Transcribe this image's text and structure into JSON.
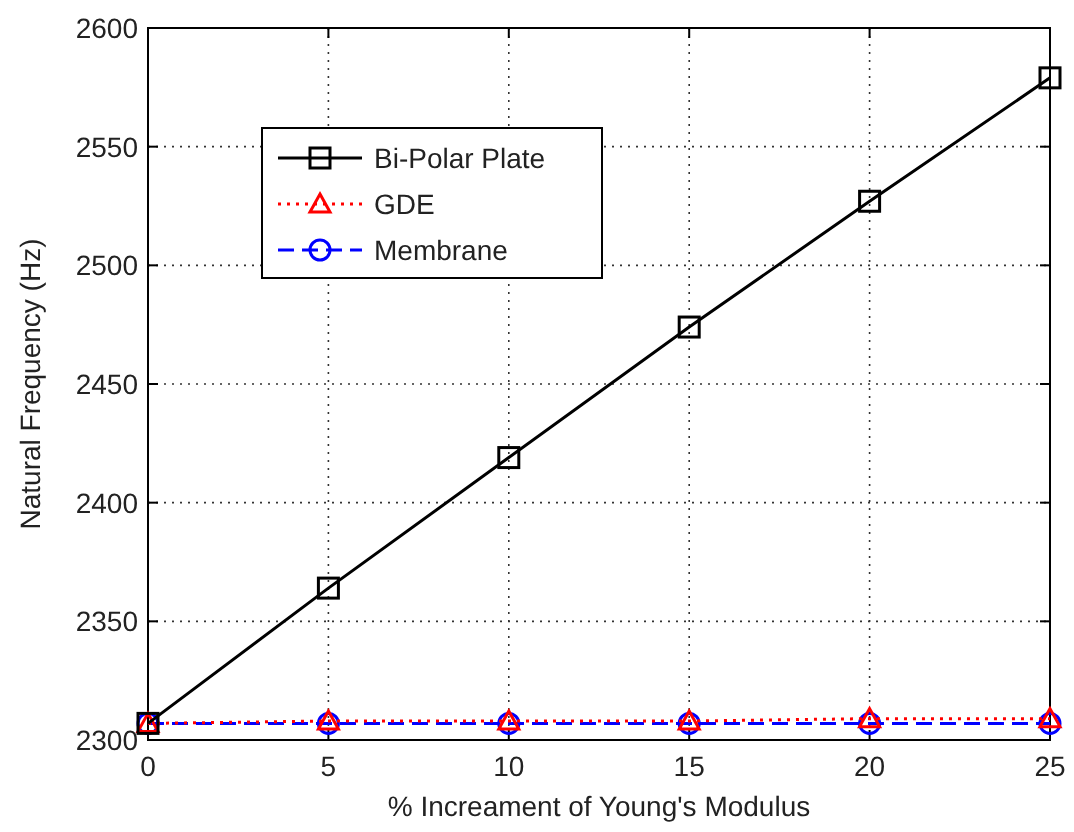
{
  "chart_data": {
    "type": "line",
    "xlabel": "% Increament of Young's Modulus",
    "ylabel": "Natural Frequency (Hz)",
    "x": [
      0,
      5,
      10,
      15,
      20,
      25
    ],
    "xlim": [
      0,
      25
    ],
    "xticks": [
      0,
      5,
      10,
      15,
      20,
      25
    ],
    "ylim": [
      2300,
      2600
    ],
    "yticks": [
      2300,
      2350,
      2400,
      2450,
      2500,
      2550,
      2600
    ],
    "grid": true,
    "legend": "top left",
    "series": [
      {
        "name": "Bi-Polar Plate",
        "color": "#000000",
        "marker": "square",
        "line_style": "solid",
        "values": [
          2307,
          2364,
          2419,
          2474,
          2527,
          2579
        ]
      },
      {
        "name": "GDE",
        "color": "#ff0000",
        "marker": "triangle",
        "line_style": "dotted",
        "values": [
          2307,
          2308,
          2308,
          2308,
          2309,
          2309
        ]
      },
      {
        "name": "Membrane",
        "color": "#0000ff",
        "marker": "circle",
        "line_style": "dashed",
        "values": [
          2307,
          2307,
          2307,
          2307,
          2307,
          2307
        ]
      }
    ]
  }
}
